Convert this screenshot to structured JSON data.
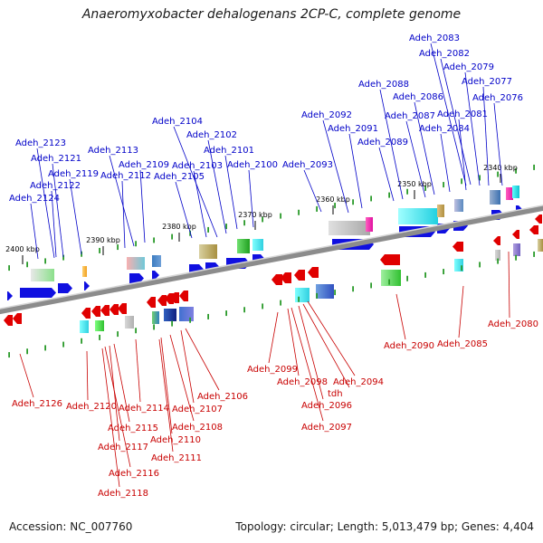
{
  "title": "Anaeromyxobacter dehalogenans 2CP-C, complete genome",
  "footer": {
    "accession": "Accession: NC_007760",
    "summary": "Topology: circular; Length: 5,013,479 bp; Genes: 4,404"
  },
  "colors": {
    "forward_gene": "#1010e0",
    "reverse_gene": "#e00000",
    "upper_label": "#0000c8",
    "lower_label": "#c80000",
    "backbone": "#8c8c8c",
    "tick": "#2a9a2a",
    "scale_text": "#000000"
  },
  "scale_labels": [
    "2340 kbp",
    "2350 kbp",
    "2360 kbp",
    "2370 kbp",
    "2380 kbp",
    "2390 kbp",
    "2400 kbp"
  ],
  "upper_labels": [
    "Adeh_2083",
    "Adeh_2082",
    "Adeh_2079",
    "Adeh_2077",
    "Adeh_2076",
    "Adeh_2088",
    "Adeh_2086",
    "Adeh_2087",
    "Adeh_2081",
    "Adeh_2084",
    "Adeh_2092",
    "Adeh_2091",
    "Adeh_2089",
    "Adeh_2093",
    "Adeh_2104",
    "Adeh_2102",
    "Adeh_2101",
    "Adeh_2103",
    "Adeh_2100",
    "Adeh_2105",
    "Adeh_2113",
    "Adeh_2109",
    "Adeh_2112",
    "Adeh_2123",
    "Adeh_2121",
    "Adeh_2119",
    "Adeh_2122",
    "Adeh_2124"
  ],
  "lower_labels": [
    "Adeh_2080",
    "Adeh_2085",
    "Adeh_2090",
    "Adeh_2094",
    "tdh",
    "Adeh_2096",
    "Adeh_2097",
    "Adeh_2098",
    "Adeh_2099",
    "Adeh_2106",
    "Adeh_2107",
    "Adeh_2108",
    "Adeh_2110",
    "Adeh_2111",
    "Adeh_2114",
    "Adeh_2115",
    "Adeh_2117",
    "Adeh_2116",
    "Adeh_2118",
    "Adeh_2120",
    "Adeh_2126"
  ]
}
